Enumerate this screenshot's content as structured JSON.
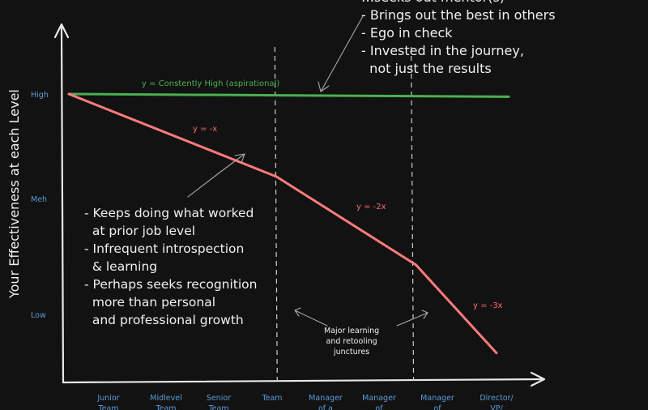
{
  "chart_data": {
    "type": "line",
    "ylabel": "Your Effectiveness at each Level",
    "y_tick_labels": [
      "High",
      "Meh",
      "Low"
    ],
    "x_tick_labels": [
      [
        "Junior",
        "Team"
      ],
      [
        "Midlevel",
        "Team"
      ],
      [
        "Senior",
        "Team"
      ],
      [
        "Team",
        ""
      ],
      [
        "Manager",
        "of a"
      ],
      [
        "Manager",
        "of"
      ],
      [
        "Manager",
        "of"
      ],
      [
        "Director/",
        "VP/"
      ]
    ],
    "series": [
      {
        "name": "y = Constently High (aspirational)",
        "color": "#4caf50",
        "points": [
          [
            0,
            100
          ],
          [
            7.1,
            99
          ]
        ]
      },
      {
        "name": "y = -x",
        "color": "#ff6b6b",
        "points": [
          [
            0,
            100
          ],
          [
            3.35,
            70
          ]
        ]
      },
      {
        "name": "y = -2x",
        "color": "#ff6b6b",
        "points": [
          [
            3.35,
            70
          ],
          [
            5.6,
            38
          ]
        ]
      },
      {
        "name": "y = -3x",
        "color": "#ff6b6b",
        "points": [
          [
            5.6,
            38
          ],
          [
            6.9,
            6
          ]
        ]
      }
    ],
    "line_labels": [
      "y = -x",
      "y = -2x",
      "y = -3x"
    ],
    "dashed_lines_x": [
      3.35,
      5.55
    ],
    "annotations": {
      "top_note": [
        "…seeks out mentor(s)",
        "- Brings out the best in others",
        "- Ego in check",
        "- Invested in the journey,",
        "  not just the results"
      ],
      "left_note": [
        "- Keeps doing what worked",
        "  at prior job level",
        "- Infrequent introspection",
        "  & learning",
        "- Perhaps seeks recognition",
        "  more than personal",
        "  and professional growth"
      ],
      "junctures_note": [
        "Major learning",
        "and retooling",
        "junctures"
      ]
    }
  },
  "colors": {
    "axis": "#e8e8e8",
    "tick_text": "#5b9bd5",
    "green": "#4caf50",
    "red": "#ff7b7b",
    "dashed": "#cfcfcf"
  }
}
